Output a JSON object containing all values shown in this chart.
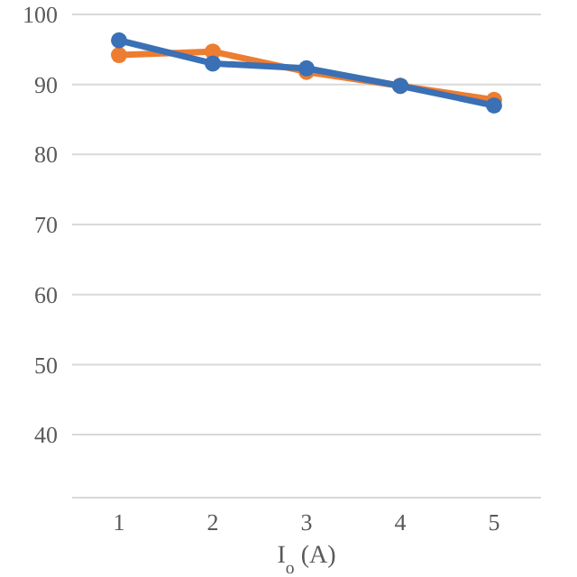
{
  "chart_data": {
    "type": "line",
    "xlabel": "I$_{o}$ (A)",
    "categories": [
      "1",
      "2",
      "3",
      "4",
      "5"
    ],
    "series": [
      {
        "color": "#ed7d31",
        "values": [
          94.2,
          94.7,
          91.8,
          89.8,
          87.8
        ]
      },
      {
        "color": "#3a70b5",
        "values": [
          96.3,
          93,
          92.3,
          89.8,
          87
        ]
      }
    ],
    "ylim": [
      31,
      100
    ],
    "yticks": [
      40,
      50,
      60,
      70,
      80,
      90,
      100
    ],
    "grid": "y",
    "marker": "circle"
  }
}
